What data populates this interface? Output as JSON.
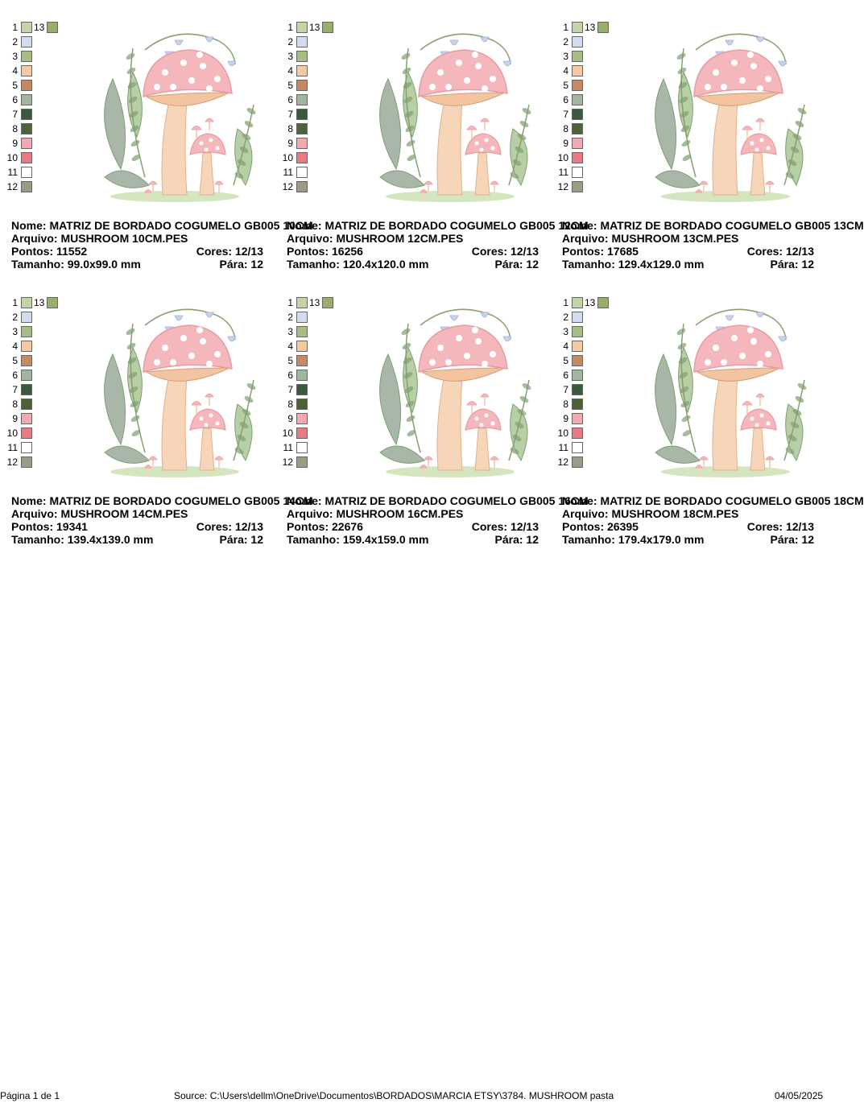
{
  "labels": {
    "name": "Nome:",
    "file": "Arquivo:",
    "stitches": "Pontos:",
    "colors": "Cores:",
    "stops": "Pára:",
    "size": "Tamanho:"
  },
  "thread_colors": [
    "#c3d4a7",
    "#d3dbee",
    "#a8bd84",
    "#f6c9a3",
    "#c58a63",
    "#9fb6a0",
    "#3a5a3e",
    "#4d6238",
    "#f3a9b0",
    "#e87a84",
    "#ffffff",
    "#9b9b86"
  ],
  "extra_color": {
    "number": "13",
    "color": "#9aae6c"
  },
  "art_colors": {
    "cap": "#f4b8bc",
    "cap_edge": "#e99aa2",
    "spots": "#ffffff",
    "gills": "#f2c4a0",
    "stem": "#f7d5b8",
    "leaf_light": "#b8cfa5",
    "leaf_dark": "#7e9f72",
    "leaf_grey": "#a9b7a8",
    "stem_twig": "#8a9e70",
    "flower": "#c8d2ee",
    "ground": "#d4e6c0"
  },
  "designs": [
    {
      "name": "MATRIZ DE BORDADO COGUMELO GB005 10CM",
      "file": "MUSHROOM 10CM.PES",
      "stitches": "11552",
      "colors": "12/13",
      "size": "99.0x99.0 mm",
      "stops": "12"
    },
    {
      "name": "MATRIZ DE BORDADO COGUMELO GB005 12CM",
      "file": "MUSHROOM 12CM.PES",
      "stitches": "16256",
      "colors": "12/13",
      "size": "120.4x120.0 mm",
      "stops": "12"
    },
    {
      "name": "MATRIZ DE BORDADO COGUMELO GB005 13CM",
      "file": "MUSHROOM 13CM.PES",
      "stitches": "17685",
      "colors": "12/13",
      "size": "129.4x129.0 mm",
      "stops": "12"
    },
    {
      "name": "MATRIZ DE BORDADO COGUMELO GB005 14CM",
      "file": "MUSHROOM 14CM.PES",
      "stitches": "19341",
      "colors": "12/13",
      "size": "139.4x139.0 mm",
      "stops": "12"
    },
    {
      "name": "MATRIZ DE BORDADO COGUMELO GB005 16CM",
      "file": "MUSHROOM 16CM.PES",
      "stitches": "22676",
      "colors": "12/13",
      "size": "159.4x159.0 mm",
      "stops": "12"
    },
    {
      "name": "MATRIZ DE BORDADO COGUMELO GB005 18CM",
      "file": "MUSHROOM 18CM.PES",
      "stitches": "26395",
      "colors": "12/13",
      "size": "179.4x179.0 mm",
      "stops": "12"
    }
  ],
  "footer": {
    "page": "Página 1 de 1",
    "source": "Source: C:\\Users\\dellm\\OneDrive\\Documentos\\BORDADOS\\MARCIA ETSY\\3784. MUSHROOM pasta",
    "date": "04/05/2025"
  }
}
